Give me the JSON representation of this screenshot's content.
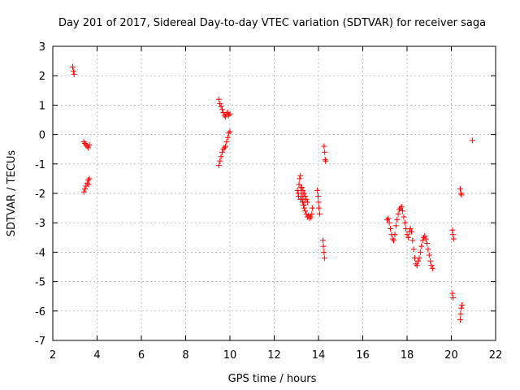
{
  "chart_data": {
    "type": "scatter",
    "title": "Day 201 of 2017, Sidereal Day-to-day VTEC variation (SDTVAR) for receiver saga",
    "xlabel": "GPS time / hours",
    "ylabel": "SDTVAR / TECUs",
    "xlim": [
      2,
      22
    ],
    "ylim": [
      -7,
      3
    ],
    "xticks": [
      2,
      4,
      6,
      8,
      10,
      12,
      14,
      16,
      18,
      20,
      22
    ],
    "yticks": [
      -7,
      -6,
      -5,
      -4,
      -3,
      -2,
      -1,
      0,
      1,
      2,
      3
    ],
    "xtick_labels": [
      "2",
      "4",
      "6",
      "8",
      "10",
      "12",
      "14",
      "16",
      "18",
      "20",
      "22"
    ],
    "ytick_labels": [
      "-7",
      "-6",
      "-5",
      "-4",
      "-3",
      "-2",
      "-1",
      "0",
      "1",
      "2",
      "3"
    ],
    "grid": true,
    "marker": "plus",
    "color": "#ff0000",
    "series": [
      {
        "name": "saga",
        "points": [
          [
            2.9,
            2.3
          ],
          [
            2.93,
            2.15
          ],
          [
            2.96,
            2.05
          ],
          [
            3.4,
            -0.25
          ],
          [
            3.45,
            -0.3
          ],
          [
            3.5,
            -0.35
          ],
          [
            3.55,
            -0.4
          ],
          [
            3.6,
            -0.45
          ],
          [
            3.65,
            -0.35
          ],
          [
            3.4,
            -1.95
          ],
          [
            3.45,
            -1.85
          ],
          [
            3.5,
            -1.75
          ],
          [
            3.55,
            -1.65
          ],
          [
            3.6,
            -1.55
          ],
          [
            3.65,
            -1.5
          ],
          [
            3.62,
            -1.7
          ],
          [
            9.5,
            -1.05
          ],
          [
            9.55,
            -0.9
          ],
          [
            9.6,
            -0.75
          ],
          [
            9.65,
            -0.6
          ],
          [
            9.7,
            -0.5
          ],
          [
            9.75,
            -0.45
          ],
          [
            9.8,
            -0.4
          ],
          [
            9.85,
            -0.25
          ],
          [
            9.9,
            -0.1
          ],
          [
            9.95,
            0.05
          ],
          [
            10.0,
            0.1
          ],
          [
            9.5,
            1.2
          ],
          [
            9.55,
            1.05
          ],
          [
            9.6,
            0.95
          ],
          [
            9.65,
            0.85
          ],
          [
            9.7,
            0.75
          ],
          [
            9.75,
            0.65
          ],
          [
            9.8,
            0.6
          ],
          [
            9.85,
            0.7
          ],
          [
            9.9,
            0.75
          ],
          [
            9.95,
            0.65
          ],
          [
            10.0,
            0.7
          ],
          [
            13.05,
            -1.9
          ],
          [
            13.08,
            -2.0
          ],
          [
            13.1,
            -2.1
          ],
          [
            13.12,
            -1.7
          ],
          [
            13.15,
            -1.5
          ],
          [
            13.18,
            -1.4
          ],
          [
            13.2,
            -1.8
          ],
          [
            13.22,
            -2.0
          ],
          [
            13.25,
            -2.2
          ],
          [
            13.28,
            -2.3
          ],
          [
            13.3,
            -2.1
          ],
          [
            13.32,
            -2.4
          ],
          [
            13.35,
            -2.5
          ],
          [
            13.38,
            -2.3
          ],
          [
            13.4,
            -2.6
          ],
          [
            13.45,
            -2.7
          ],
          [
            13.5,
            -2.8
          ],
          [
            13.55,
            -2.75
          ],
          [
            13.6,
            -2.85
          ],
          [
            13.65,
            -2.8
          ],
          [
            13.7,
            -2.7
          ],
          [
            13.72,
            -2.5
          ],
          [
            13.18,
            -2.2
          ],
          [
            13.25,
            -1.8
          ],
          [
            13.3,
            -1.9
          ],
          [
            13.35,
            -2.0
          ],
          [
            13.4,
            -2.1
          ],
          [
            13.45,
            -2.2
          ],
          [
            13.5,
            -2.3
          ],
          [
            13.95,
            -1.9
          ],
          [
            13.98,
            -2.1
          ],
          [
            14.0,
            -2.3
          ],
          [
            14.02,
            -2.5
          ],
          [
            14.05,
            -2.7
          ],
          [
            14.2,
            -3.6
          ],
          [
            14.22,
            -3.8
          ],
          [
            14.25,
            -4.0
          ],
          [
            14.27,
            -4.2
          ],
          [
            14.25,
            -0.4
          ],
          [
            14.28,
            -0.6
          ],
          [
            14.3,
            -0.85
          ],
          [
            14.32,
            -0.9
          ],
          [
            17.1,
            -2.9
          ],
          [
            17.15,
            -2.85
          ],
          [
            17.2,
            -3.0
          ],
          [
            17.25,
            -3.2
          ],
          [
            17.3,
            -3.4
          ],
          [
            17.35,
            -3.55
          ],
          [
            17.4,
            -3.6
          ],
          [
            17.45,
            -3.4
          ],
          [
            17.5,
            -3.1
          ],
          [
            17.55,
            -2.9
          ],
          [
            17.6,
            -2.7
          ],
          [
            17.65,
            -2.55
          ],
          [
            17.7,
            -2.5
          ],
          [
            17.75,
            -2.45
          ],
          [
            17.8,
            -2.6
          ],
          [
            17.85,
            -2.8
          ],
          [
            17.9,
            -3.0
          ],
          [
            17.95,
            -3.2
          ],
          [
            18.0,
            -3.4
          ],
          [
            18.05,
            -3.5
          ],
          [
            18.1,
            -3.3
          ],
          [
            18.15,
            -3.2
          ],
          [
            18.2,
            -3.3
          ],
          [
            18.25,
            -3.6
          ],
          [
            18.3,
            -3.9
          ],
          [
            18.35,
            -4.2
          ],
          [
            18.4,
            -4.4
          ],
          [
            18.45,
            -4.45
          ],
          [
            18.5,
            -4.3
          ],
          [
            18.55,
            -4.2
          ],
          [
            18.6,
            -4.0
          ],
          [
            18.65,
            -3.8
          ],
          [
            18.7,
            -3.6
          ],
          [
            18.75,
            -3.5
          ],
          [
            18.8,
            -3.45
          ],
          [
            18.85,
            -3.55
          ],
          [
            18.9,
            -3.7
          ],
          [
            18.95,
            -3.9
          ],
          [
            19.0,
            -4.1
          ],
          [
            19.05,
            -4.3
          ],
          [
            19.1,
            -4.45
          ],
          [
            19.15,
            -4.55
          ],
          [
            20.05,
            -3.25
          ],
          [
            20.07,
            -3.4
          ],
          [
            20.1,
            -3.55
          ],
          [
            20.05,
            -5.4
          ],
          [
            20.08,
            -5.55
          ],
          [
            20.4,
            -1.85
          ],
          [
            20.43,
            -2.0
          ],
          [
            20.46,
            -2.05
          ],
          [
            20.4,
            -6.3
          ],
          [
            20.42,
            -6.1
          ],
          [
            20.45,
            -5.9
          ],
          [
            20.48,
            -5.8
          ],
          [
            20.95,
            -0.2
          ]
        ]
      }
    ]
  }
}
